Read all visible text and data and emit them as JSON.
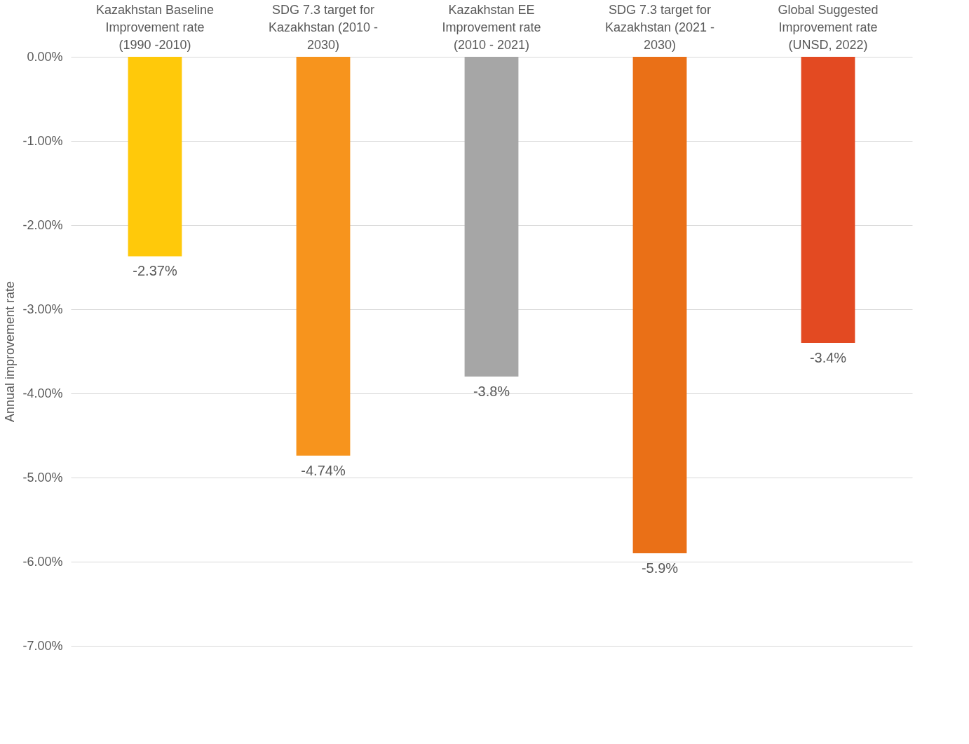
{
  "chart_data": {
    "type": "bar",
    "categories": [
      "Kazakhstan Baseline Improvement rate (1990 -2010)",
      "SDG 7.3 target for Kazakhstan (2010 - 2030)",
      "Kazakhstan EE Improvement rate (2010 - 2021)",
      "SDG 7.3 target for Kazakhstan (2021 - 2030)",
      "Global Suggested Improvement rate (UNSD, 2022)"
    ],
    "values": [
      -2.37,
      -4.74,
      -3.8,
      -5.9,
      -3.4
    ],
    "value_labels": [
      "-2.37%",
      "-4.74%",
      "-3.8%",
      "-5.9%",
      "-3.4%"
    ],
    "colors": [
      "#ffc90a",
      "#f7941d",
      "#a6a6a6",
      "#ea7017",
      "#e34a22"
    ],
    "ylabel": "Annual improvement rate",
    "ylim": [
      -7,
      0
    ],
    "yticks": [
      {
        "value": 0,
        "label": "0.00%"
      },
      {
        "value": -1,
        "label": "-1.00%"
      },
      {
        "value": -2,
        "label": "-2.00%"
      },
      {
        "value": -3,
        "label": "-3.00%"
      },
      {
        "value": -4,
        "label": "-4.00%"
      },
      {
        "value": -5,
        "label": "-5.00%"
      },
      {
        "value": -6,
        "label": "-6.00%"
      },
      {
        "value": -7,
        "label": "-7.00%"
      }
    ],
    "grid": "y",
    "legend": false
  }
}
